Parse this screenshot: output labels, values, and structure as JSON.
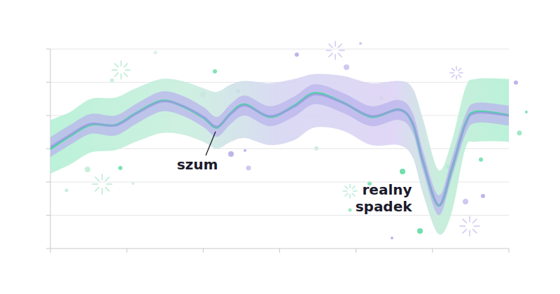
{
  "chart_data": {
    "type": "line",
    "x": [
      0,
      0.26,
      0.53,
      0.85,
      1.12,
      1.45,
      1.72,
      2.0,
      2.18,
      2.36,
      2.55,
      2.87,
      3.19,
      3.46,
      3.83,
      4.2,
      4.56,
      4.74,
      4.88,
      5.08,
      5.25,
      5.43,
      5.57,
      6.0
    ],
    "series": [
      {
        "color": "#3ddc97",
        "values": [
          3.0,
          3.39,
          3.73,
          3.71,
          4.07,
          4.44,
          4.29,
          3.94,
          3.64,
          4.07,
          4.33,
          3.96,
          4.29,
          4.67,
          4.39,
          3.96,
          4.18,
          3.75,
          2.57,
          1.29,
          2.36,
          3.75,
          4.11,
          4.01
        ],
        "lower": [
          2.25,
          2.53,
          2.89,
          2.96,
          3.21,
          3.47,
          3.43,
          3.21,
          3.0,
          3.21,
          3.32,
          3.11,
          3.26,
          3.64,
          3.54,
          3.11,
          3.11,
          2.74,
          1.61,
          0.43,
          1.07,
          3.0,
          3.21,
          3.21
        ],
        "upper": [
          3.86,
          4.11,
          4.5,
          4.54,
          4.82,
          5.1,
          5.04,
          4.82,
          4.71,
          4.93,
          5.04,
          4.97,
          5.1,
          5.25,
          5.19,
          4.97,
          5.04,
          4.82,
          3.86,
          2.36,
          3.21,
          4.82,
          5.1,
          5.1
        ]
      },
      {
        "color": "#9f9be6",
        "values": [
          3.05,
          3.42,
          3.75,
          3.7,
          4.05,
          4.42,
          4.3,
          3.96,
          3.66,
          4.05,
          4.3,
          3.98,
          4.27,
          4.64,
          4.38,
          3.98,
          4.17,
          3.78,
          2.6,
          1.3,
          2.4,
          3.72,
          4.08,
          4.0
        ],
        "lower": [
          2.75,
          3.12,
          3.45,
          3.4,
          3.75,
          4.12,
          4.0,
          3.66,
          3.36,
          3.75,
          4.0,
          3.68,
          3.97,
          4.34,
          4.08,
          3.68,
          3.87,
          3.48,
          2.3,
          1.0,
          2.1,
          3.42,
          3.78,
          3.7
        ],
        "upper": [
          3.35,
          3.72,
          4.05,
          4.0,
          4.35,
          4.72,
          4.6,
          4.26,
          3.96,
          4.35,
          4.6,
          4.28,
          4.57,
          4.94,
          4.68,
          4.28,
          4.47,
          4.08,
          2.9,
          1.6,
          2.7,
          4.02,
          4.38,
          4.3
        ]
      }
    ],
    "xlim": [
      0,
      6
    ],
    "xticks": [
      0,
      1,
      2,
      3,
      4,
      5,
      6
    ],
    "ylim": [
      0,
      6
    ],
    "yticks": [
      0,
      1,
      2,
      3,
      4,
      5,
      6
    ],
    "grid": true,
    "tick_labels": false,
    "annotations": [
      {
        "text": "szum",
        "x": 2.18,
        "y": 3.64
      },
      {
        "text": "realny spadek",
        "x": 5.08,
        "y": 1.29
      }
    ]
  }
}
